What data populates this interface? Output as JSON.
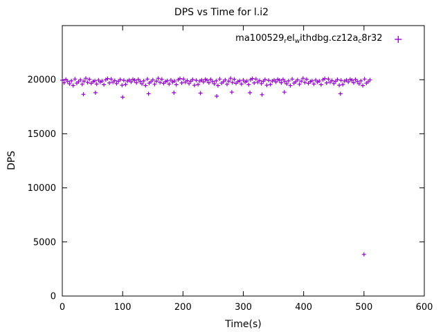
{
  "chart_data": {
    "type": "scatter",
    "title": "DPS vs Time for l.i2",
    "xlabel": "Time(s)",
    "ylabel": "DPS",
    "xlim": [
      0,
      600
    ],
    "ylim": [
      0,
      25000
    ],
    "xticks": [
      0,
      100,
      200,
      300,
      400,
      500,
      600
    ],
    "yticks": [
      0,
      5000,
      10000,
      15000,
      20000
    ],
    "grid": false,
    "legend_position": "top-right-inside",
    "marker": "plus",
    "series": [
      {
        "name": "ma100529_rel_withdbg.cz12a_c8r32",
        "color": "#9400d3",
        "label_segments": [
          {
            "t": "ma100529",
            "sub": false
          },
          {
            "t": "r",
            "sub": true
          },
          {
            "t": "el",
            "sub": false
          },
          {
            "t": "w",
            "sub": true
          },
          {
            "t": "ithdbg.cz12a",
            "sub": false
          },
          {
            "t": "c",
            "sub": true
          },
          {
            "t": "8r32",
            "sub": false
          }
        ],
        "points": [
          [
            0,
            19950
          ],
          [
            3,
            19720
          ],
          [
            6,
            20020
          ],
          [
            9,
            19840
          ],
          [
            12,
            19620
          ],
          [
            15,
            19890
          ],
          [
            18,
            19460
          ],
          [
            21,
            20060
          ],
          [
            24,
            19680
          ],
          [
            27,
            19810
          ],
          [
            30,
            19980
          ],
          [
            33,
            19580
          ],
          [
            36,
            19860
          ],
          [
            39,
            20130
          ],
          [
            42,
            19740
          ],
          [
            45,
            20040
          ],
          [
            48,
            19660
          ],
          [
            51,
            19820
          ],
          [
            54,
            19900
          ],
          [
            57,
            19600
          ],
          [
            60,
            19960
          ],
          [
            63,
            19780
          ],
          [
            66,
            19880
          ],
          [
            69,
            19540
          ],
          [
            72,
            20000
          ],
          [
            75,
            20100
          ],
          [
            78,
            19700
          ],
          [
            81,
            20050
          ],
          [
            84,
            19770
          ],
          [
            87,
            19920
          ],
          [
            90,
            19640
          ],
          [
            93,
            19850
          ],
          [
            96,
            20010
          ],
          [
            99,
            19490
          ],
          [
            102,
            19940
          ],
          [
            105,
            19560
          ],
          [
            108,
            19870
          ],
          [
            111,
            19970
          ],
          [
            114,
            19790
          ],
          [
            117,
            20030
          ],
          [
            120,
            19950
          ],
          [
            123,
            19720
          ],
          [
            126,
            20020
          ],
          [
            129,
            19840
          ],
          [
            132,
            19620
          ],
          [
            135,
            19890
          ],
          [
            138,
            19460
          ],
          [
            141,
            20060
          ],
          [
            144,
            19680
          ],
          [
            147,
            19810
          ],
          [
            150,
            19980
          ],
          [
            153,
            19580
          ],
          [
            156,
            19860
          ],
          [
            159,
            20130
          ],
          [
            162,
            19740
          ],
          [
            165,
            20040
          ],
          [
            168,
            19660
          ],
          [
            171,
            19820
          ],
          [
            174,
            19900
          ],
          [
            177,
            19600
          ],
          [
            180,
            19960
          ],
          [
            183,
            19780
          ],
          [
            186,
            19880
          ],
          [
            189,
            19540
          ],
          [
            192,
            20000
          ],
          [
            195,
            20100
          ],
          [
            198,
            19700
          ],
          [
            201,
            20050
          ],
          [
            204,
            19770
          ],
          [
            207,
            19920
          ],
          [
            210,
            19640
          ],
          [
            213,
            19850
          ],
          [
            216,
            20010
          ],
          [
            219,
            19490
          ],
          [
            222,
            19940
          ],
          [
            225,
            19560
          ],
          [
            228,
            19870
          ],
          [
            231,
            19970
          ],
          [
            234,
            19790
          ],
          [
            237,
            20030
          ],
          [
            240,
            19950
          ],
          [
            243,
            19720
          ],
          [
            246,
            20020
          ],
          [
            249,
            19840
          ],
          [
            252,
            19620
          ],
          [
            255,
            19890
          ],
          [
            258,
            19460
          ],
          [
            261,
            20060
          ],
          [
            264,
            19680
          ],
          [
            267,
            19810
          ],
          [
            270,
            19980
          ],
          [
            273,
            19580
          ],
          [
            276,
            19860
          ],
          [
            279,
            20130
          ],
          [
            282,
            19740
          ],
          [
            285,
            20040
          ],
          [
            288,
            19660
          ],
          [
            291,
            19820
          ],
          [
            294,
            19900
          ],
          [
            297,
            19600
          ],
          [
            300,
            19960
          ],
          [
            303,
            19780
          ],
          [
            306,
            19880
          ],
          [
            309,
            19540
          ],
          [
            312,
            20000
          ],
          [
            315,
            20100
          ],
          [
            318,
            19700
          ],
          [
            321,
            20050
          ],
          [
            324,
            19770
          ],
          [
            327,
            19920
          ],
          [
            330,
            19640
          ],
          [
            333,
            19850
          ],
          [
            336,
            20010
          ],
          [
            339,
            19490
          ],
          [
            342,
            19940
          ],
          [
            345,
            19560
          ],
          [
            348,
            19870
          ],
          [
            351,
            19970
          ],
          [
            354,
            19790
          ],
          [
            357,
            20030
          ],
          [
            360,
            19950
          ],
          [
            363,
            19720
          ],
          [
            366,
            20020
          ],
          [
            369,
            19840
          ],
          [
            372,
            19620
          ],
          [
            375,
            19890
          ],
          [
            378,
            19460
          ],
          [
            381,
            20060
          ],
          [
            384,
            19680
          ],
          [
            387,
            19810
          ],
          [
            390,
            19980
          ],
          [
            393,
            19580
          ],
          [
            396,
            19860
          ],
          [
            399,
            20130
          ],
          [
            402,
            19740
          ],
          [
            405,
            20040
          ],
          [
            408,
            19660
          ],
          [
            411,
            19820
          ],
          [
            414,
            19900
          ],
          [
            417,
            19600
          ],
          [
            420,
            19960
          ],
          [
            423,
            19780
          ],
          [
            426,
            19880
          ],
          [
            429,
            19540
          ],
          [
            432,
            20000
          ],
          [
            435,
            20100
          ],
          [
            438,
            19700
          ],
          [
            441,
            20050
          ],
          [
            444,
            19770
          ],
          [
            447,
            19920
          ],
          [
            450,
            19640
          ],
          [
            453,
            19850
          ],
          [
            456,
            20010
          ],
          [
            459,
            19490
          ],
          [
            462,
            19940
          ],
          [
            465,
            19560
          ],
          [
            468,
            19870
          ],
          [
            471,
            19970
          ],
          [
            474,
            19790
          ],
          [
            477,
            20030
          ],
          [
            480,
            19950
          ],
          [
            483,
            19720
          ],
          [
            486,
            20020
          ],
          [
            489,
            19840
          ],
          [
            492,
            19620
          ],
          [
            495,
            19890
          ],
          [
            498,
            19460
          ],
          [
            501,
            20060
          ],
          [
            504,
            19680
          ],
          [
            507,
            19810
          ],
          [
            510,
            19980
          ],
          [
            35,
            18650
          ],
          [
            55,
            18800
          ],
          [
            100,
            18380
          ],
          [
            143,
            18700
          ],
          [
            185,
            18800
          ],
          [
            229,
            18760
          ],
          [
            256,
            18480
          ],
          [
            281,
            18850
          ],
          [
            311,
            18800
          ],
          [
            331,
            18620
          ],
          [
            368,
            18850
          ],
          [
            461,
            18700
          ],
          [
            500,
            3850
          ]
        ]
      }
    ]
  }
}
